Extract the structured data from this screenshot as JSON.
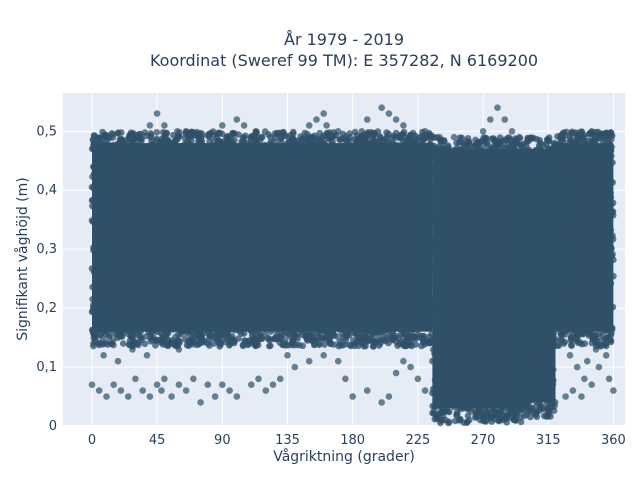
{
  "chart_data": {
    "type": "scatter",
    "title_line1": "År 1979 - 2019",
    "title_line2": "Koordinat (Sweref 99 TM): E 357282, N 6169200",
    "xlabel": "Vågriktning (grader)",
    "ylabel": "Signifikant våghöjd (m)",
    "xlim": [
      -20,
      368
    ],
    "ylim": [
      0,
      0.565
    ],
    "x_ticks": [
      0,
      45,
      90,
      135,
      180,
      225,
      270,
      315,
      360
    ],
    "x_tick_labels": [
      "0",
      "45",
      "90",
      "135",
      "180",
      "225",
      "270",
      "315",
      "360"
    ],
    "y_ticks": [
      0,
      0.1,
      0.2,
      0.3,
      0.4,
      0.5
    ],
    "y_tick_labels": [
      "0",
      "0,1",
      "0,2",
      "0,3",
      "0,4",
      "0,5"
    ],
    "grid": true,
    "legend": "none",
    "marker_color": "#2f5068",
    "plot_bg": "#e5ecf6",
    "regions": [
      {
        "x": [
          0,
          235
        ],
        "y": [
          0.16,
          0.48
        ]
      },
      {
        "x": [
          235,
          300
        ],
        "y": [
          0.03,
          0.47
        ]
      },
      {
        "x": [
          300,
          320
        ],
        "y": [
          0.04,
          0.47
        ]
      },
      {
        "x": [
          320,
          360
        ],
        "y": [
          0.16,
          0.48
        ]
      }
    ],
    "outliers": [
      [
        0,
        0.07
      ],
      [
        5,
        0.06
      ],
      [
        10,
        0.05
      ],
      [
        15,
        0.07
      ],
      [
        20,
        0.06
      ],
      [
        25,
        0.05
      ],
      [
        30,
        0.08
      ],
      [
        35,
        0.06
      ],
      [
        40,
        0.05
      ],
      [
        45,
        0.07
      ],
      [
        48,
        0.06
      ],
      [
        50,
        0.08
      ],
      [
        55,
        0.05
      ],
      [
        60,
        0.07
      ],
      [
        65,
        0.06
      ],
      [
        70,
        0.08
      ],
      [
        75,
        0.04
      ],
      [
        80,
        0.07
      ],
      [
        85,
        0.05
      ],
      [
        90,
        0.07
      ],
      [
        95,
        0.06
      ],
      [
        100,
        0.05
      ],
      [
        110,
        0.07
      ],
      [
        115,
        0.08
      ],
      [
        120,
        0.06
      ],
      [
        125,
        0.07
      ],
      [
        130,
        0.08
      ],
      [
        140,
        0.1
      ],
      [
        150,
        0.11
      ],
      [
        160,
        0.12
      ],
      [
        170,
        0.11
      ],
      [
        175,
        0.08
      ],
      [
        180,
        0.05
      ],
      [
        190,
        0.06
      ],
      [
        200,
        0.04
      ],
      [
        205,
        0.05
      ],
      [
        210,
        0.09
      ],
      [
        215,
        0.11
      ],
      [
        220,
        0.1
      ],
      [
        225,
        0.08
      ],
      [
        230,
        0.06
      ],
      [
        1,
        0.14
      ],
      [
        8,
        0.12
      ],
      [
        18,
        0.11
      ],
      [
        28,
        0.13
      ],
      [
        38,
        0.12
      ],
      [
        60,
        0.13
      ],
      [
        80,
        0.14
      ],
      [
        95,
        0.15
      ],
      [
        110,
        0.14
      ],
      [
        135,
        0.12
      ],
      [
        150,
        0.51
      ],
      [
        155,
        0.52
      ],
      [
        160,
        0.53
      ],
      [
        162,
        0.51
      ],
      [
        170,
        0.5
      ],
      [
        190,
        0.52
      ],
      [
        200,
        0.54
      ],
      [
        205,
        0.53
      ],
      [
        210,
        0.52
      ],
      [
        215,
        0.51
      ],
      [
        40,
        0.51
      ],
      [
        45,
        0.53
      ],
      [
        50,
        0.51
      ],
      [
        65,
        0.5
      ],
      [
        90,
        0.51
      ],
      [
        100,
        0.52
      ],
      [
        105,
        0.51
      ],
      [
        230,
        0.5
      ],
      [
        240,
        0.49
      ],
      [
        250,
        0.49
      ],
      [
        270,
        0.5
      ],
      [
        275,
        0.52
      ],
      [
        280,
        0.54
      ],
      [
        285,
        0.52
      ],
      [
        290,
        0.5
      ],
      [
        295,
        0.49
      ],
      [
        330,
        0.49
      ],
      [
        340,
        0.49
      ],
      [
        345,
        0.5
      ],
      [
        350,
        0.49
      ],
      [
        355,
        0.49
      ],
      [
        320,
        0.47
      ],
      [
        325,
        0.46
      ],
      [
        330,
        0.12
      ],
      [
        335,
        0.1
      ],
      [
        340,
        0.08
      ],
      [
        345,
        0.07
      ],
      [
        350,
        0.1
      ],
      [
        355,
        0.12
      ],
      [
        357,
        0.08
      ],
      [
        360,
        0.06
      ],
      [
        342,
        0.11
      ],
      [
        348,
        0.13
      ],
      [
        327,
        0.05
      ],
      [
        332,
        0.06
      ],
      [
        338,
        0.05
      ]
    ]
  }
}
